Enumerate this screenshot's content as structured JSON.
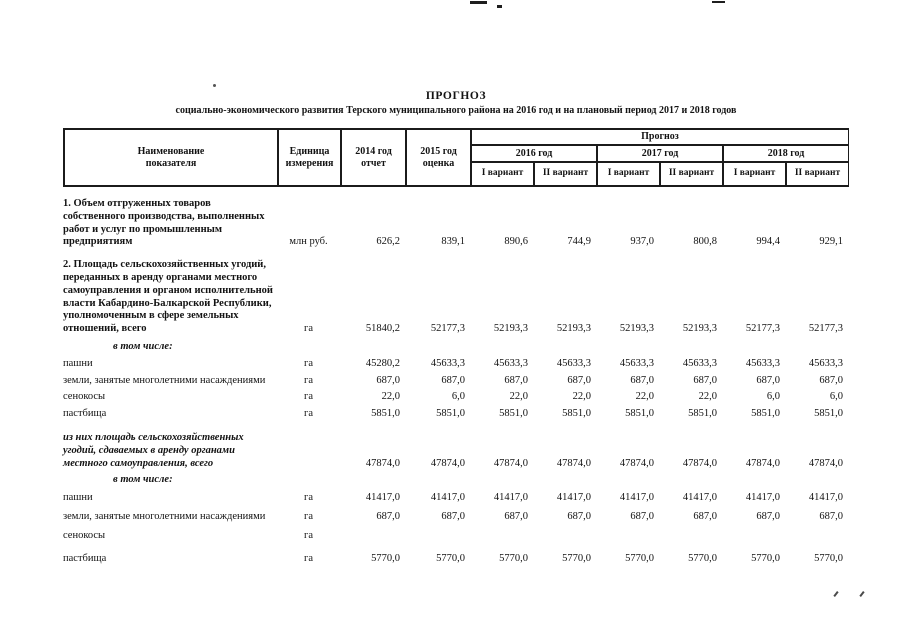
{
  "doc": {
    "title": "ПРОГНОЗ",
    "subtitle": "социально-экономического развития Терского муниципального района на 2016 год и на плановый период 2017 и 2018 годов"
  },
  "table": {
    "header": {
      "indicator": "Наименование\nпоказателя",
      "unit": "Единица\nизмерения",
      "col2014": "2014 год\nотчет",
      "col2015": "2015 год\nоценка",
      "forecast": "Прогноз",
      "years": [
        "2016 год",
        "2017 год",
        "2018 год"
      ],
      "variant1": "I вариант",
      "variant2": "II вариант"
    },
    "rows": [
      {
        "name": "1. Объем отгруженных товаров собственного производства, выполненных работ и услуг по промышленным предприятиям",
        "unit": "млн руб.",
        "style": "bold",
        "values": [
          "626,2",
          "839,1",
          "890,6",
          "744,9",
          "937,0",
          "800,8",
          "994,4",
          "929,1"
        ]
      },
      {
        "name": "2. Площадь сельскохозяйственных угодий, переданных в аренду органами местного самоуправления и органом исполнительной власти Кабардино-Балкарской Республики, уполномоченным в сфере земельных отношений, всего",
        "unit": "га",
        "style": "bold",
        "values": [
          "51840,2",
          "52177,3",
          "52193,3",
          "52193,3",
          "52193,3",
          "52193,3",
          "52177,3",
          "52177,3"
        ]
      },
      {
        "name": "в том числе:",
        "unit": "",
        "style": "subheader",
        "values": [
          "",
          "",
          "",
          "",
          "",
          "",
          "",
          ""
        ]
      },
      {
        "name": "пашни",
        "unit": "га",
        "style": "plain",
        "values": [
          "45280,2",
          "45633,3",
          "45633,3",
          "45633,3",
          "45633,3",
          "45633,3",
          "45633,3",
          "45633,3"
        ]
      },
      {
        "name": "земли, занятые многолетними насаждениями",
        "unit": "га",
        "style": "plain",
        "values": [
          "687,0",
          "687,0",
          "687,0",
          "687,0",
          "687,0",
          "687,0",
          "687,0",
          "687,0"
        ]
      },
      {
        "name": "сенокосы",
        "unit": "га",
        "style": "plain",
        "values": [
          "22,0",
          "6,0",
          "22,0",
          "22,0",
          "22,0",
          "22,0",
          "6,0",
          "6,0"
        ]
      },
      {
        "name": "пастбища",
        "unit": "га",
        "style": "plain",
        "values": [
          "5851,0",
          "5851,0",
          "5851,0",
          "5851,0",
          "5851,0",
          "5851,0",
          "5851,0",
          "5851,0"
        ]
      },
      {
        "name": "из них площадь сельскохозяйственных угодий, сдаваемых в аренду органами местного самоуправления, всего",
        "unit": "",
        "style": "italic",
        "values": [
          "47874,0",
          "47874,0",
          "47874,0",
          "47874,0",
          "47874,0",
          "47874,0",
          "47874,0",
          "47874,0"
        ]
      },
      {
        "name": "в том числе:",
        "unit": "",
        "style": "subheader",
        "values": [
          "",
          "",
          "",
          "",
          "",
          "",
          "",
          ""
        ]
      },
      {
        "name": "пашни",
        "unit": "га",
        "style": "plain",
        "values": [
          "41417,0",
          "41417,0",
          "41417,0",
          "41417,0",
          "41417,0",
          "41417,0",
          "41417,0",
          "41417,0"
        ]
      },
      {
        "name": "земли, занятые многолетними насаждениями",
        "unit": "га",
        "style": "plain",
        "values": [
          "687,0",
          "687,0",
          "687,0",
          "687,0",
          "687,0",
          "687,0",
          "687,0",
          "687,0"
        ]
      },
      {
        "name": "сенокосы",
        "unit": "га",
        "style": "plain",
        "values": [
          "",
          "",
          "",
          "",
          "",
          "",
          "",
          ""
        ]
      },
      {
        "name": "пастбища",
        "unit": "га",
        "style": "plain",
        "values": [
          "5770,0",
          "5770,0",
          "5770,0",
          "5770,0",
          "5770,0",
          "5770,0",
          "5770,0",
          "5770,0"
        ]
      }
    ]
  }
}
